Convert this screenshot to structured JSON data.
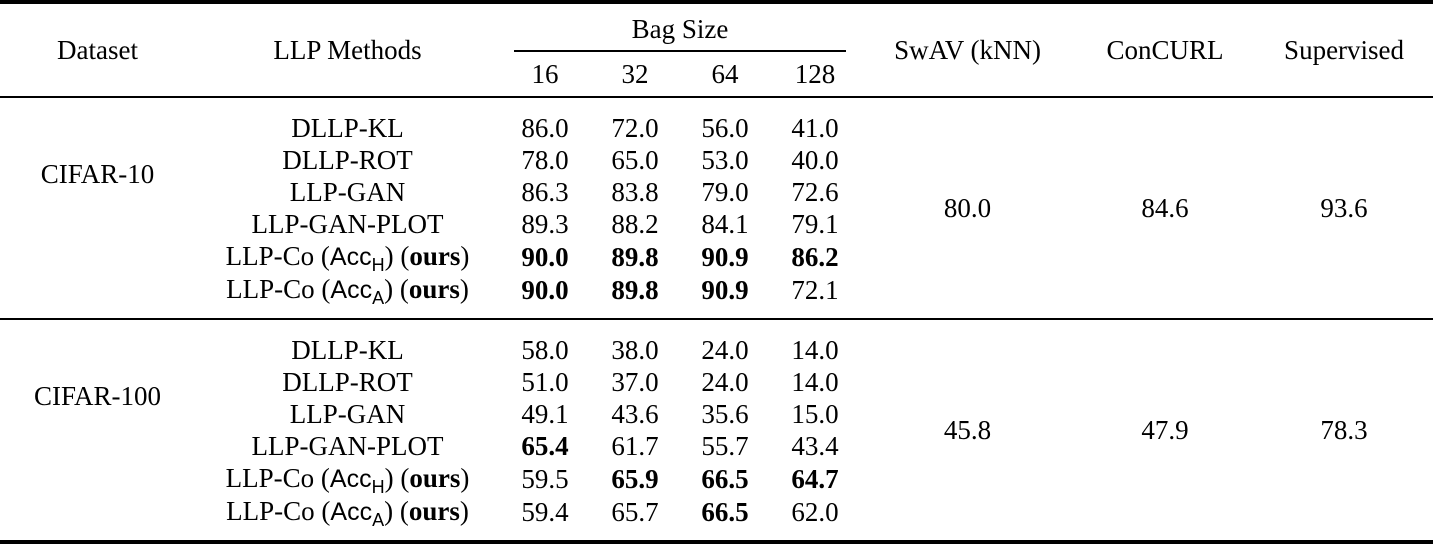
{
  "colors": {
    "text": "#000000",
    "background": "#ffffff",
    "rule": "#000000"
  },
  "table": {
    "headers": {
      "dataset": "Dataset",
      "methods": "LLP Methods",
      "bag_size": "Bag Size",
      "bag_sizes": [
        "16",
        "32",
        "64",
        "128"
      ],
      "swav": "SwAV (kNN)",
      "concurl": "ConCURL",
      "supervised": "Supervised"
    },
    "sections": [
      {
        "dataset": "CIFAR-10",
        "swav": "80.0",
        "concurl": "84.6",
        "supervised": "93.6",
        "rows": [
          {
            "method": "DLLP-KL",
            "values": [
              "86.0",
              "72.0",
              "56.0",
              "41.0"
            ],
            "bold": [
              false,
              false,
              false,
              false
            ]
          },
          {
            "method": "DLLP-ROT",
            "values": [
              "78.0",
              "65.0",
              "53.0",
              "40.0"
            ],
            "bold": [
              false,
              false,
              false,
              false
            ]
          },
          {
            "method": "LLP-GAN",
            "values": [
              "86.3",
              "83.8",
              "79.0",
              "72.6"
            ],
            "bold": [
              false,
              false,
              false,
              false
            ]
          },
          {
            "method": "LLP-GAN-PLOT",
            "values": [
              "89.3",
              "88.2",
              "84.1",
              "79.1"
            ],
            "bold": [
              false,
              false,
              false,
              false
            ]
          },
          {
            "method": {
              "pre": "LLP-Co (",
              "sf": "Acc",
              "sub": "H",
              "mid": ") (",
              "bold_word": "ours",
              "end": ")"
            },
            "values": [
              "90.0",
              "89.8",
              "90.9",
              "86.2"
            ],
            "bold": [
              true,
              true,
              true,
              true
            ]
          },
          {
            "method": {
              "pre": "LLP-Co (",
              "sf": "Acc",
              "sub": "A",
              "mid": ") (",
              "bold_word": "ours",
              "end": ")"
            },
            "values": [
              "90.0",
              "89.8",
              "90.9",
              "72.1"
            ],
            "bold": [
              true,
              true,
              true,
              false
            ]
          }
        ]
      },
      {
        "dataset": "CIFAR-100",
        "swav": "45.8",
        "concurl": "47.9",
        "supervised": "78.3",
        "rows": [
          {
            "method": "DLLP-KL",
            "values": [
              "58.0",
              "38.0",
              "24.0",
              "14.0"
            ],
            "bold": [
              false,
              false,
              false,
              false
            ]
          },
          {
            "method": "DLLP-ROT",
            "values": [
              "51.0",
              "37.0",
              "24.0",
              "14.0"
            ],
            "bold": [
              false,
              false,
              false,
              false
            ]
          },
          {
            "method": "LLP-GAN",
            "values": [
              "49.1",
              "43.6",
              "35.6",
              "15.0"
            ],
            "bold": [
              false,
              false,
              false,
              false
            ]
          },
          {
            "method": "LLP-GAN-PLOT",
            "values": [
              "65.4",
              "61.7",
              "55.7",
              "43.4"
            ],
            "bold": [
              true,
              false,
              false,
              false
            ]
          },
          {
            "method": {
              "pre": "LLP-Co (",
              "sf": "Acc",
              "sub": "H",
              "mid": ") (",
              "bold_word": "ours",
              "end": ")"
            },
            "values": [
              "59.5",
              "65.9",
              "66.5",
              "64.7"
            ],
            "bold": [
              false,
              true,
              true,
              true
            ]
          },
          {
            "method": {
              "pre": "LLP-Co (",
              "sf": "Acc",
              "sub": "A",
              "mid": ") (",
              "bold_word": "ours",
              "end": ")"
            },
            "values": [
              "59.4",
              "65.7",
              "66.5",
              "62.0"
            ],
            "bold": [
              false,
              false,
              true,
              false
            ]
          }
        ]
      }
    ]
  }
}
